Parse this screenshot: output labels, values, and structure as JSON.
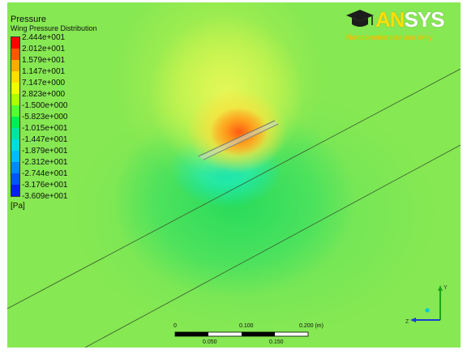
{
  "legend": {
    "title": "Pressure",
    "subtitle": "Wing Pressure Distribution",
    "units": "[Pa]",
    "ticks": [
      "2.444e+001",
      "2.012e+001",
      "1.579e+001",
      "1.147e+001",
      "7.147e+000",
      "2.823e+000",
      "-1.500e+000",
      "-5.823e+000",
      "-1.015e+001",
      "-1.447e+001",
      "-1.879e+001",
      "-2.312e+001",
      "-2.744e+001",
      "-3.176e+001",
      "-3.609e+001"
    ],
    "colors": [
      "#ff0000",
      "#ff5500",
      "#ffaa00",
      "#ffdd00",
      "#eeff00",
      "#aaff00",
      "#55ff33",
      "#00ee55",
      "#00e5a0",
      "#00dddd",
      "#00bbff",
      "#0088ff",
      "#0055ff",
      "#0022ee"
    ]
  },
  "logo": {
    "icon": "graduation-cap-icon",
    "text_a": "AN",
    "text_b": "SYS",
    "subtitle": "Noncommercial use only"
  },
  "scale": {
    "ticks_top": [
      "0",
      "0.100",
      "0.200 (m)"
    ],
    "ticks_bottom": [
      "0.050",
      "0.150"
    ]
  },
  "triad": {
    "labels": [
      "Y",
      "Z"
    ]
  }
}
